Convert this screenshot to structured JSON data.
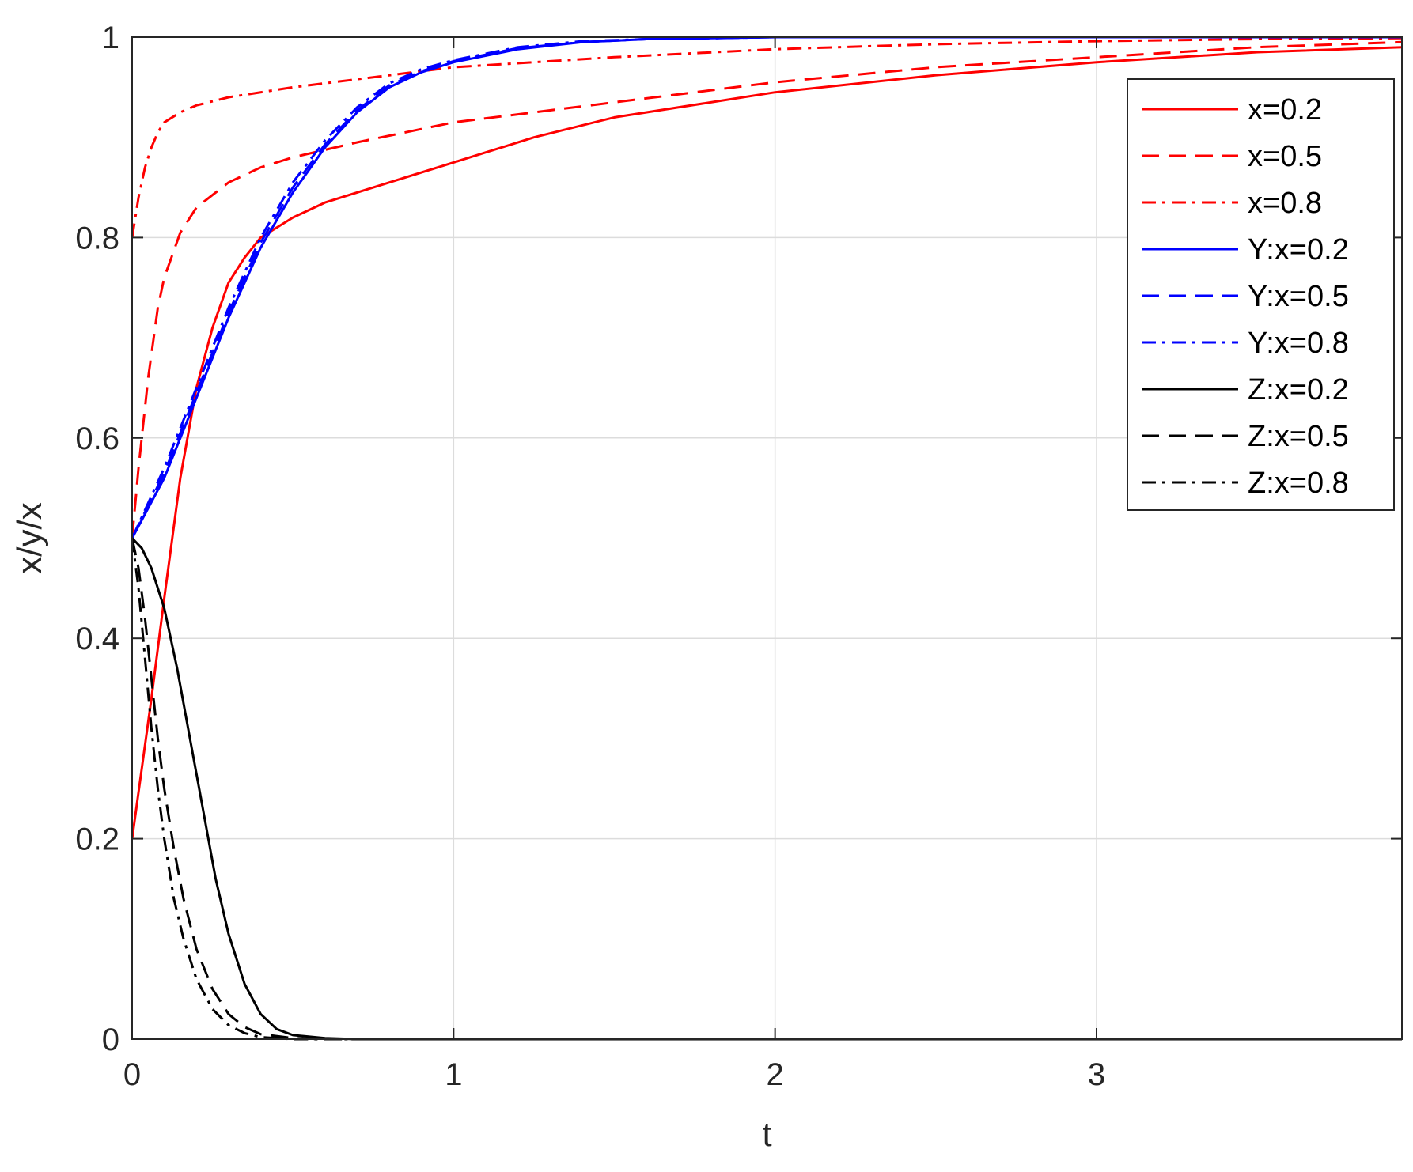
{
  "chart_data": {
    "type": "line",
    "title": "",
    "xlabel": "t",
    "ylabel": "x/y/x",
    "xlim": [
      0,
      3.95
    ],
    "ylim": [
      0,
      1
    ],
    "xticks": [
      0,
      1,
      2,
      3
    ],
    "yticks": [
      0,
      0.2,
      0.4,
      0.6,
      0.8,
      1
    ],
    "xtick_labels": [
      "0",
      "1",
      "2",
      "3"
    ],
    "ytick_labels": [
      "0",
      "0.2",
      "0.4",
      "0.6",
      "0.8",
      "1"
    ],
    "grid": true,
    "legend_position": "top-right",
    "series": [
      {
        "name": "x=0.2",
        "color": "#ff0000",
        "style": "solid",
        "x": [
          0,
          0.03,
          0.06,
          0.1,
          0.15,
          0.2,
          0.25,
          0.3,
          0.35,
          0.4,
          0.5,
          0.6,
          0.8,
          1.0,
          1.25,
          1.5,
          2.0,
          2.5,
          3.0,
          3.5,
          3.95
        ],
        "y": [
          0.2,
          0.27,
          0.34,
          0.44,
          0.56,
          0.65,
          0.71,
          0.755,
          0.78,
          0.8,
          0.82,
          0.835,
          0.855,
          0.875,
          0.9,
          0.92,
          0.945,
          0.962,
          0.975,
          0.985,
          0.99
        ]
      },
      {
        "name": "x=0.5",
        "color": "#ff0000",
        "style": "dashed",
        "x": [
          0,
          0.02,
          0.05,
          0.08,
          0.1,
          0.15,
          0.2,
          0.3,
          0.4,
          0.5,
          0.7,
          1.0,
          1.5,
          2.0,
          2.5,
          3.0,
          3.5,
          3.95
        ],
        "y": [
          0.5,
          0.57,
          0.66,
          0.73,
          0.76,
          0.805,
          0.83,
          0.855,
          0.87,
          0.88,
          0.895,
          0.915,
          0.935,
          0.955,
          0.97,
          0.98,
          0.99,
          0.995
        ]
      },
      {
        "name": "x=0.8",
        "color": "#ff0000",
        "style": "dashdot",
        "x": [
          0,
          0.02,
          0.04,
          0.06,
          0.08,
          0.1,
          0.15,
          0.2,
          0.3,
          0.5,
          0.75,
          1.0,
          1.5,
          2.0,
          2.5,
          3.0,
          3.5,
          3.95
        ],
        "y": [
          0.8,
          0.84,
          0.87,
          0.89,
          0.905,
          0.915,
          0.925,
          0.932,
          0.94,
          0.95,
          0.96,
          0.97,
          0.98,
          0.988,
          0.993,
          0.996,
          0.998,
          0.999
        ]
      },
      {
        "name": "Y:x=0.2",
        "color": "#0000ff",
        "style": "solid",
        "x": [
          0,
          0.1,
          0.2,
          0.3,
          0.4,
          0.5,
          0.6,
          0.7,
          0.8,
          0.9,
          1.0,
          1.2,
          1.4,
          1.6,
          1.8,
          2.0,
          2.5,
          3.0,
          3.5,
          3.95
        ],
        "y": [
          0.5,
          0.56,
          0.64,
          0.72,
          0.79,
          0.845,
          0.89,
          0.925,
          0.95,
          0.965,
          0.975,
          0.988,
          0.995,
          0.998,
          0.999,
          1.0,
          1.0,
          1.0,
          1.0,
          1.0
        ]
      },
      {
        "name": "Y:x=0.5",
        "color": "#0000ff",
        "style": "dashed",
        "x": [
          0,
          0.1,
          0.2,
          0.3,
          0.4,
          0.5,
          0.6,
          0.7,
          0.8,
          0.9,
          1.0,
          1.2,
          1.4,
          1.6,
          1.8,
          2.0,
          2.5,
          3.0,
          3.5,
          3.95
        ],
        "y": [
          0.5,
          0.565,
          0.645,
          0.725,
          0.795,
          0.85,
          0.893,
          0.927,
          0.952,
          0.966,
          0.976,
          0.989,
          0.995,
          0.998,
          0.999,
          1.0,
          1.0,
          1.0,
          1.0,
          1.0
        ]
      },
      {
        "name": "Y:x=0.8",
        "color": "#0000ff",
        "style": "dashdot",
        "x": [
          0,
          0.1,
          0.2,
          0.3,
          0.4,
          0.5,
          0.6,
          0.7,
          0.8,
          0.9,
          1.0,
          1.2,
          1.4,
          1.6,
          1.8,
          2.0,
          2.5,
          3.0,
          3.5,
          3.95
        ],
        "y": [
          0.5,
          0.57,
          0.65,
          0.73,
          0.8,
          0.855,
          0.897,
          0.93,
          0.954,
          0.968,
          0.977,
          0.99,
          0.996,
          0.998,
          0.999,
          1.0,
          1.0,
          1.0,
          1.0,
          1.0
        ]
      },
      {
        "name": "Z:x=0.2",
        "color": "#000000",
        "style": "solid",
        "x": [
          0,
          0.03,
          0.06,
          0.1,
          0.14,
          0.18,
          0.22,
          0.26,
          0.3,
          0.35,
          0.4,
          0.45,
          0.5,
          0.6,
          0.7,
          1.0,
          2.0,
          3.0,
          3.95
        ],
        "y": [
          0.5,
          0.49,
          0.47,
          0.43,
          0.37,
          0.3,
          0.23,
          0.16,
          0.105,
          0.055,
          0.025,
          0.01,
          0.004,
          0.001,
          0.0,
          0.0,
          0.0,
          0.0,
          0.0
        ]
      },
      {
        "name": "Z:x=0.5",
        "color": "#000000",
        "style": "dashed",
        "x": [
          0,
          0.02,
          0.04,
          0.06,
          0.08,
          0.1,
          0.13,
          0.16,
          0.2,
          0.25,
          0.3,
          0.35,
          0.4,
          0.5,
          0.6,
          1.0,
          2.0,
          3.0,
          3.95
        ],
        "y": [
          0.5,
          0.47,
          0.42,
          0.36,
          0.3,
          0.25,
          0.19,
          0.14,
          0.09,
          0.05,
          0.025,
          0.012,
          0.005,
          0.001,
          0.0,
          0.0,
          0.0,
          0.0,
          0.0
        ]
      },
      {
        "name": "Z:x=0.8",
        "color": "#000000",
        "style": "dashdot",
        "x": [
          0,
          0.02,
          0.04,
          0.06,
          0.08,
          0.1,
          0.13,
          0.16,
          0.2,
          0.25,
          0.3,
          0.35,
          0.4,
          0.5,
          0.6,
          1.0,
          2.0,
          3.0,
          3.95
        ],
        "y": [
          0.5,
          0.45,
          0.38,
          0.31,
          0.25,
          0.2,
          0.14,
          0.1,
          0.06,
          0.03,
          0.014,
          0.006,
          0.002,
          0.0,
          0.0,
          0.0,
          0.0,
          0.0,
          0.0
        ]
      }
    ]
  }
}
